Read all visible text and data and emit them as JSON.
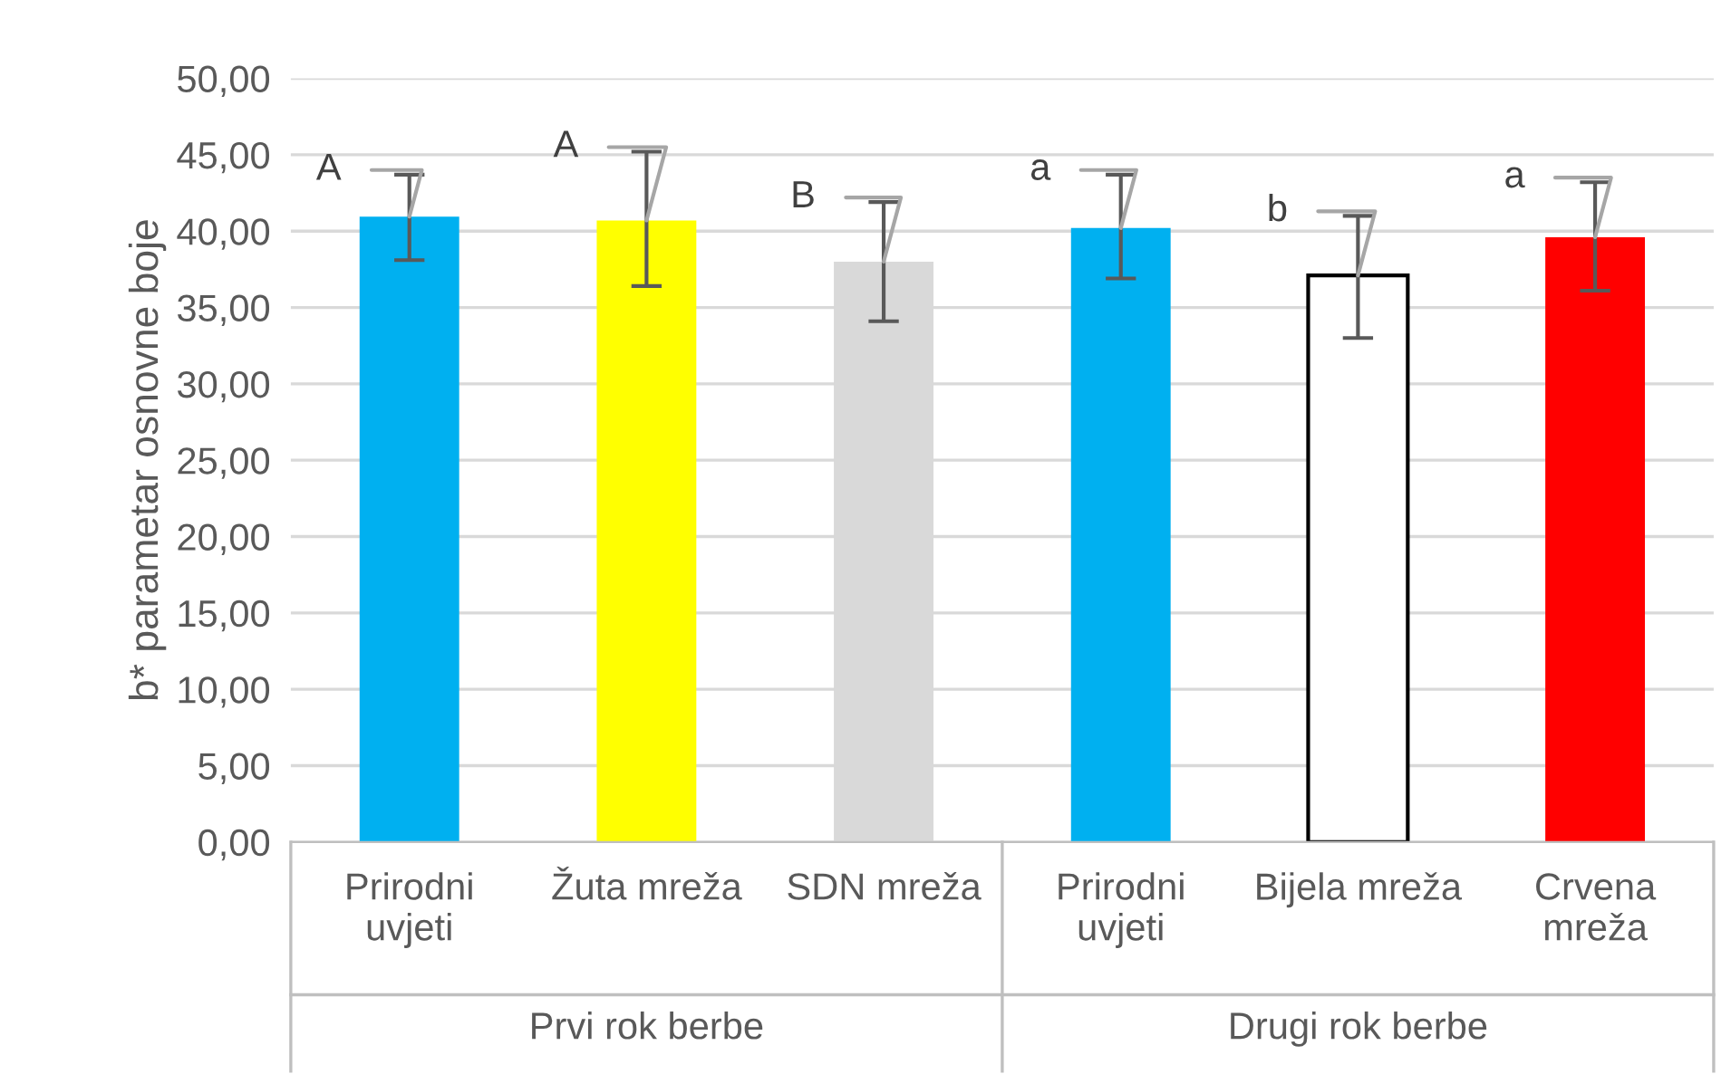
{
  "chart_data": {
    "type": "bar",
    "ylabel": "b* parametar osnovne boje",
    "categories": [
      "Prirodni\nuvjeti",
      "Žuta mreža",
      "SDN mreža",
      "Prirodni\nuvjeti",
      "Bijela mreža",
      "Crvena\nmreža"
    ],
    "values": [
      40.95,
      40.7,
      38.0,
      40.2,
      37.1,
      39.6
    ],
    "errors": [
      [
        38.1,
        43.7
      ],
      [
        36.4,
        45.2
      ],
      [
        34.1,
        41.9
      ],
      [
        36.9,
        43.7
      ],
      [
        33.0,
        41.0
      ],
      [
        36.1,
        43.2
      ]
    ],
    "colors": [
      "#00b0f0",
      "#ffff00",
      "#d9d9d9",
      "#00b0f0",
      "#ffffff",
      "#ff0000"
    ],
    "value_labels": [
      "A",
      "A",
      "B",
      "a",
      "b",
      "a"
    ],
    "annotations": [
      "Prvi rok berbe",
      "Drugi rok berbe"
    ],
    "ylim": [
      0,
      50
    ],
    "yticks": [
      {
        "value": 0,
        "label": "0,00"
      },
      {
        "value": 5,
        "label": "5,00"
      },
      {
        "value": 10,
        "label": "10,00"
      },
      {
        "value": 15,
        "label": "15,00"
      },
      {
        "value": 20,
        "label": "20,00"
      },
      {
        "value": 25,
        "label": "25,00"
      },
      {
        "value": 30,
        "label": "30,00"
      },
      {
        "value": 35,
        "label": "35,00"
      },
      {
        "value": 40,
        "label": "40,00"
      },
      {
        "value": 45,
        "label": "45,00"
      },
      {
        "value": 50,
        "label": "50,00"
      }
    ],
    "grid": "y",
    "legend": false
  }
}
